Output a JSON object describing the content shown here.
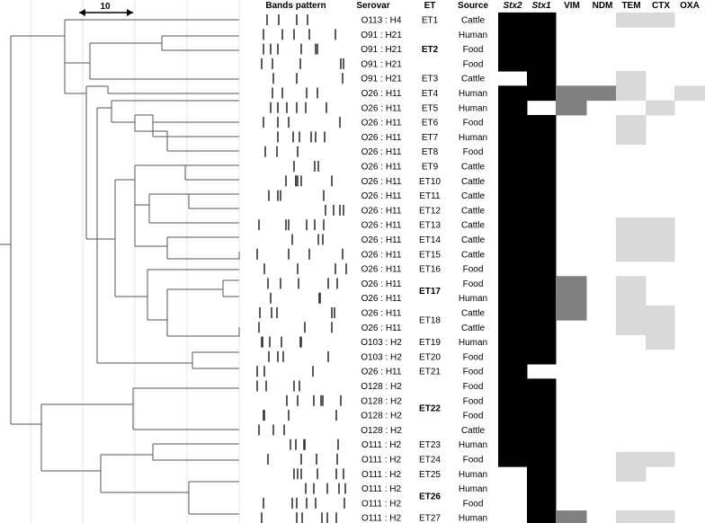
{
  "scale_label": "10",
  "headers": {
    "bands": "Bands pattern",
    "serovar": "Serovar",
    "et": "ET",
    "source": "Source",
    "stx2": "Stx2",
    "stx1": "Stx1",
    "vim": "VIM",
    "ndm": "NDM",
    "tem": "TEM",
    "ctx": "CTX",
    "oxa": "OXA"
  },
  "colors": {
    "present": "#000000",
    "partial": "#808080",
    "light": "#d9d9d9"
  },
  "rows": [
    {
      "serovar": "O113 : H4",
      "source": "Cattle",
      "stx2": 1,
      "stx1": 1,
      "vim": 0,
      "ndm": 0,
      "tem": 1,
      "ctx": 1,
      "oxa": 0
    },
    {
      "serovar": "O91 : H21",
      "source": "Human",
      "stx2": 1,
      "stx1": 1,
      "vim": 0,
      "ndm": 0,
      "tem": 0,
      "ctx": 0,
      "oxa": 0
    },
    {
      "serovar": "O91 : H21",
      "source": "Food",
      "stx2": 1,
      "stx1": 1,
      "vim": 0,
      "ndm": 0,
      "tem": 0,
      "ctx": 0,
      "oxa": 0
    },
    {
      "serovar": "O91 : H21",
      "source": "Food",
      "stx2": 1,
      "stx1": 1,
      "vim": 0,
      "ndm": 0,
      "tem": 0,
      "ctx": 0,
      "oxa": 0
    },
    {
      "serovar": "O91 : H21",
      "source": "Cattle",
      "stx2": 0,
      "stx1": 1,
      "vim": 0,
      "ndm": 0,
      "tem": 1,
      "ctx": 0,
      "oxa": 0
    },
    {
      "serovar": "O26 : H11",
      "source": "Human",
      "stx2": 1,
      "stx1": 1,
      "vim": 2,
      "ndm": 2,
      "tem": 1,
      "ctx": 0,
      "oxa": 1
    },
    {
      "serovar": "O26 : H11",
      "source": "Human",
      "stx2": 1,
      "stx1": 0,
      "vim": 2,
      "ndm": 0,
      "tem": 0,
      "ctx": 1,
      "oxa": 0
    },
    {
      "serovar": "O26 : H11",
      "source": "Food",
      "stx2": 1,
      "stx1": 1,
      "vim": 0,
      "ndm": 0,
      "tem": 1,
      "ctx": 0,
      "oxa": 0
    },
    {
      "serovar": "O26 : H11",
      "source": "Human",
      "stx2": 1,
      "stx1": 1,
      "vim": 0,
      "ndm": 0,
      "tem": 1,
      "ctx": 0,
      "oxa": 0
    },
    {
      "serovar": "O26 : H11",
      "source": "Food",
      "stx2": 1,
      "stx1": 1,
      "vim": 0,
      "ndm": 0,
      "tem": 0,
      "ctx": 0,
      "oxa": 0
    },
    {
      "serovar": "O26 : H11",
      "source": "Cattle",
      "stx2": 1,
      "stx1": 1,
      "vim": 0,
      "ndm": 0,
      "tem": 0,
      "ctx": 0,
      "oxa": 0
    },
    {
      "serovar": "O26 : H11",
      "source": "Cattle",
      "stx2": 1,
      "stx1": 1,
      "vim": 0,
      "ndm": 0,
      "tem": 0,
      "ctx": 0,
      "oxa": 0
    },
    {
      "serovar": "O26 : H11",
      "source": "Cattle",
      "stx2": 1,
      "stx1": 1,
      "vim": 0,
      "ndm": 0,
      "tem": 0,
      "ctx": 0,
      "oxa": 0
    },
    {
      "serovar": "O26 : H11",
      "source": "Cattle",
      "stx2": 1,
      "stx1": 1,
      "vim": 0,
      "ndm": 0,
      "tem": 0,
      "ctx": 0,
      "oxa": 0
    },
    {
      "serovar": "O26 : H11",
      "source": "Cattle",
      "stx2": 1,
      "stx1": 1,
      "vim": 0,
      "ndm": 0,
      "tem": 1,
      "ctx": 1,
      "oxa": 0
    },
    {
      "serovar": "O26 : H11",
      "source": "Cattle",
      "stx2": 1,
      "stx1": 1,
      "vim": 0,
      "ndm": 0,
      "tem": 1,
      "ctx": 1,
      "oxa": 0
    },
    {
      "serovar": "O26 : H11",
      "source": "Cattle",
      "stx2": 1,
      "stx1": 1,
      "vim": 0,
      "ndm": 0,
      "tem": 1,
      "ctx": 1,
      "oxa": 0
    },
    {
      "serovar": "O26 : H11",
      "source": "Food",
      "stx2": 1,
      "stx1": 1,
      "vim": 0,
      "ndm": 0,
      "tem": 0,
      "ctx": 0,
      "oxa": 0
    },
    {
      "serovar": "O26 : H11",
      "source": "Food",
      "stx2": 1,
      "stx1": 1,
      "vim": 2,
      "ndm": 0,
      "tem": 1,
      "ctx": 0,
      "oxa": 0
    },
    {
      "serovar": "O26 : H11",
      "source": "Human",
      "stx2": 1,
      "stx1": 1,
      "vim": 2,
      "ndm": 0,
      "tem": 1,
      "ctx": 0,
      "oxa": 0
    },
    {
      "serovar": "O26 : H11",
      "source": "Cattle",
      "stx2": 1,
      "stx1": 1,
      "vim": 2,
      "ndm": 0,
      "tem": 1,
      "ctx": 1,
      "oxa": 0
    },
    {
      "serovar": "O26 : H11",
      "source": "Cattle",
      "stx2": 1,
      "stx1": 1,
      "vim": 0,
      "ndm": 0,
      "tem": 1,
      "ctx": 1,
      "oxa": 0
    },
    {
      "serovar": "O103 : H2",
      "source": "Human",
      "stx2": 1,
      "stx1": 1,
      "vim": 0,
      "ndm": 0,
      "tem": 0,
      "ctx": 1,
      "oxa": 0
    },
    {
      "serovar": "O103 : H2",
      "source": "Food",
      "stx2": 1,
      "stx1": 1,
      "vim": 0,
      "ndm": 0,
      "tem": 0,
      "ctx": 0,
      "oxa": 0
    },
    {
      "serovar": "O26 : H11",
      "source": "Food",
      "stx2": 1,
      "stx1": 0,
      "vim": 0,
      "ndm": 0,
      "tem": 0,
      "ctx": 0,
      "oxa": 0
    },
    {
      "serovar": "O128 : H2",
      "source": "Food",
      "stx2": 1,
      "stx1": 1,
      "vim": 0,
      "ndm": 0,
      "tem": 0,
      "ctx": 0,
      "oxa": 0
    },
    {
      "serovar": "O128 : H2",
      "source": "Food",
      "stx2": 1,
      "stx1": 1,
      "vim": 0,
      "ndm": 0,
      "tem": 0,
      "ctx": 0,
      "oxa": 0
    },
    {
      "serovar": "O128 : H2",
      "source": "Food",
      "stx2": 1,
      "stx1": 1,
      "vim": 0,
      "ndm": 0,
      "tem": 0,
      "ctx": 0,
      "oxa": 0
    },
    {
      "serovar": "O128 : H2",
      "source": "Cattle",
      "stx2": 1,
      "stx1": 1,
      "vim": 0,
      "ndm": 0,
      "tem": 0,
      "ctx": 0,
      "oxa": 0
    },
    {
      "serovar": "O111 : H2",
      "source": "Human",
      "stx2": 1,
      "stx1": 1,
      "vim": 0,
      "ndm": 0,
      "tem": 0,
      "ctx": 0,
      "oxa": 0
    },
    {
      "serovar": "O111 : H2",
      "source": "Food",
      "stx2": 1,
      "stx1": 1,
      "vim": 0,
      "ndm": 0,
      "tem": 1,
      "ctx": 1,
      "oxa": 0
    },
    {
      "serovar": "O111 : H2",
      "source": "Human",
      "stx2": 0,
      "stx1": 1,
      "vim": 0,
      "ndm": 0,
      "tem": 1,
      "ctx": 0,
      "oxa": 0
    },
    {
      "serovar": "O111 : H2",
      "source": "Human",
      "stx2": 0,
      "stx1": 1,
      "vim": 0,
      "ndm": 0,
      "tem": 0,
      "ctx": 0,
      "oxa": 0
    },
    {
      "serovar": "O111 : H2",
      "source": "Food",
      "stx2": 0,
      "stx1": 1,
      "vim": 0,
      "ndm": 0,
      "tem": 0,
      "ctx": 0,
      "oxa": 0
    },
    {
      "serovar": "O111 : H2",
      "source": "Human",
      "stx2": 0,
      "stx1": 1,
      "vim": 2,
      "ndm": 0,
      "tem": 1,
      "ctx": 1,
      "oxa": 0
    }
  ],
  "et_labels": [
    {
      "label": "ET1",
      "rows": [
        0
      ],
      "bold": false
    },
    {
      "label": "ET2",
      "rows": [
        1,
        2,
        3
      ],
      "bold": true
    },
    {
      "label": "ET3",
      "rows": [
        4
      ],
      "bold": false
    },
    {
      "label": "ET4",
      "rows": [
        5
      ],
      "bold": false
    },
    {
      "label": "ET5",
      "rows": [
        6
      ],
      "bold": false
    },
    {
      "label": "ET6",
      "rows": [
        7
      ],
      "bold": false
    },
    {
      "label": "ET7",
      "rows": [
        8
      ],
      "bold": false
    },
    {
      "label": "ET8",
      "rows": [
        9
      ],
      "bold": false
    },
    {
      "label": "ET9",
      "rows": [
        10
      ],
      "bold": false
    },
    {
      "label": "ET10",
      "rows": [
        11
      ],
      "bold": false
    },
    {
      "label": "ET11",
      "rows": [
        12
      ],
      "bold": false
    },
    {
      "label": "ET12",
      "rows": [
        13
      ],
      "bold": false
    },
    {
      "label": "ET13",
      "rows": [
        14
      ],
      "bold": false
    },
    {
      "label": "ET14",
      "rows": [
        15
      ],
      "bold": false
    },
    {
      "label": "ET15",
      "rows": [
        16
      ],
      "bold": false
    },
    {
      "label": "ET16",
      "rows": [
        17
      ],
      "bold": false
    },
    {
      "label": "ET17",
      "rows": [
        18,
        19
      ],
      "bold": true
    },
    {
      "label": "ET18",
      "rows": [
        20,
        21
      ],
      "bold": false
    },
    {
      "label": "ET19",
      "rows": [
        22
      ],
      "bold": false
    },
    {
      "label": "ET20",
      "rows": [
        23
      ],
      "bold": false
    },
    {
      "label": "ET21",
      "rows": [
        24
      ],
      "bold": false
    },
    {
      "label": "ET22",
      "rows": [
        25,
        26,
        27,
        28
      ],
      "bold": true
    },
    {
      "label": "ET23",
      "rows": [
        29
      ],
      "bold": false
    },
    {
      "label": "ET24",
      "rows": [
        30
      ],
      "bold": false
    },
    {
      "label": "ET25",
      "rows": [
        31
      ],
      "bold": false
    },
    {
      "label": "ET26",
      "rows": [
        32,
        33
      ],
      "bold": true
    },
    {
      "label": "ET27",
      "rows": [
        34
      ],
      "bold": false
    }
  ]
}
